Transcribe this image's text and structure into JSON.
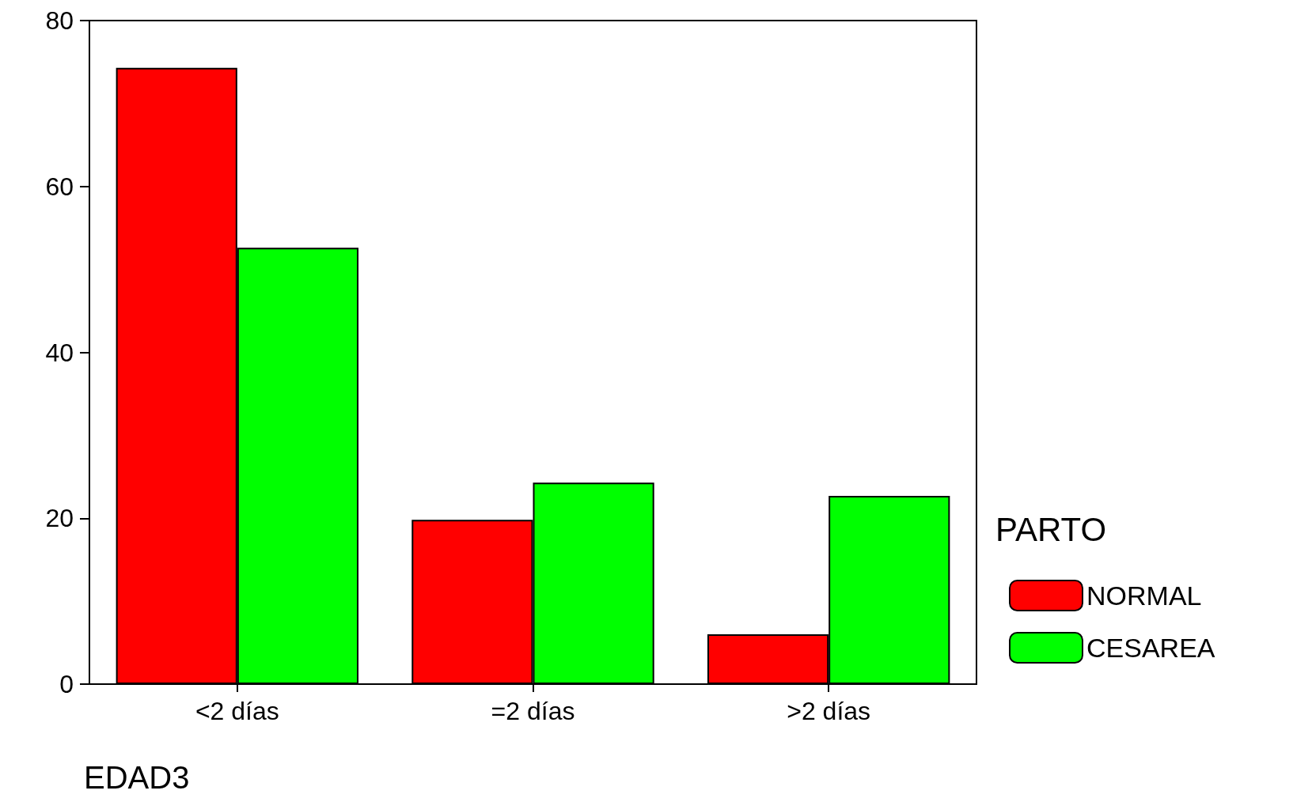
{
  "chart_data": {
    "type": "bar",
    "xlabel": "EDAD3",
    "legend_title": "PARTO",
    "categories": [
      "<2 días",
      "=2 días",
      ">2 días"
    ],
    "series": [
      {
        "name": "NORMAL",
        "color": "#ff0000",
        "values": [
          74.3,
          19.8,
          6.0
        ]
      },
      {
        "name": "CESAREA",
        "color": "#00ff00",
        "values": [
          52.6,
          24.3,
          22.7
        ]
      }
    ],
    "ylim": [
      0,
      80
    ],
    "yticks": [
      0,
      20,
      40,
      60,
      80
    ],
    "grid": false,
    "legend": "right"
  }
}
